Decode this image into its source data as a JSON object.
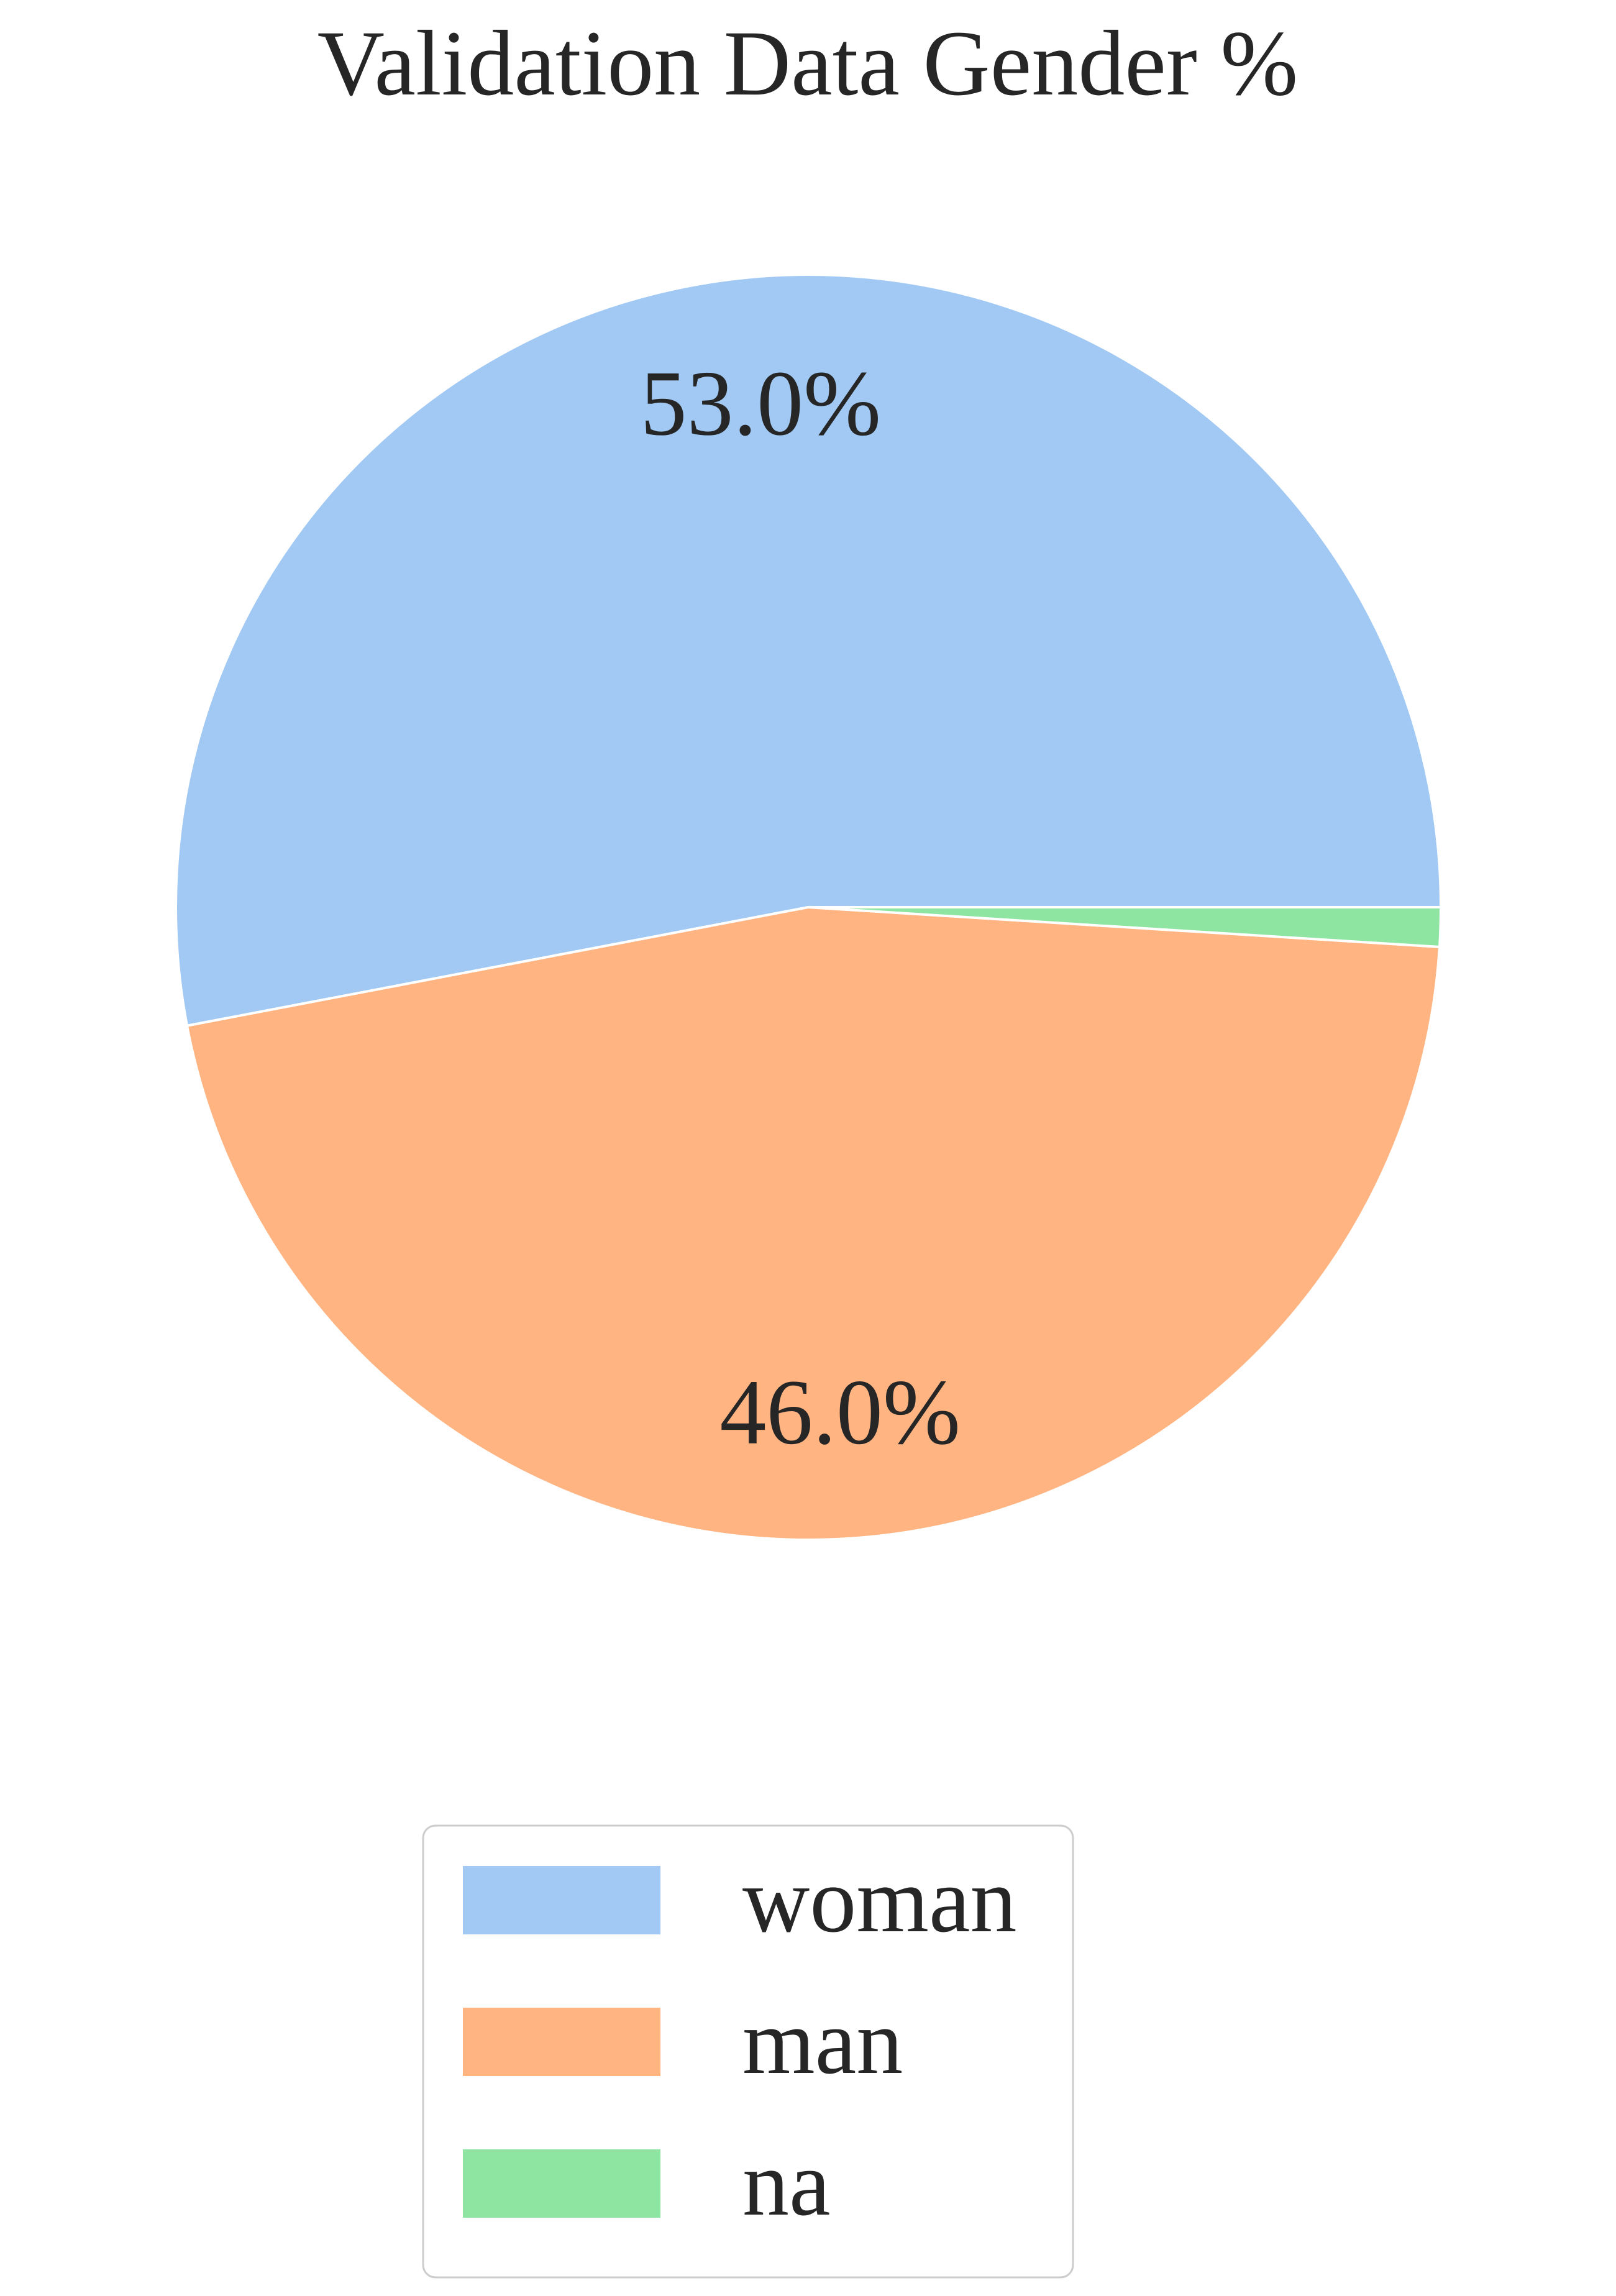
{
  "chart_data": {
    "type": "pie",
    "title": "Validation Data Gender %",
    "categories": [
      "woman",
      "man",
      "na"
    ],
    "values": [
      53.0,
      46.0,
      1.0
    ],
    "labels": [
      "53.0%",
      "46.0%",
      ""
    ],
    "colors": [
      "#a1c9f4",
      "#ffb482",
      "#8de5a1"
    ],
    "start_angle_deg": 0,
    "direction": "counterclockwise",
    "wedge_edge_color": "#ffffff",
    "legend": {
      "position": "bottom-center",
      "entries": [
        "woman",
        "man",
        "na"
      ]
    }
  }
}
